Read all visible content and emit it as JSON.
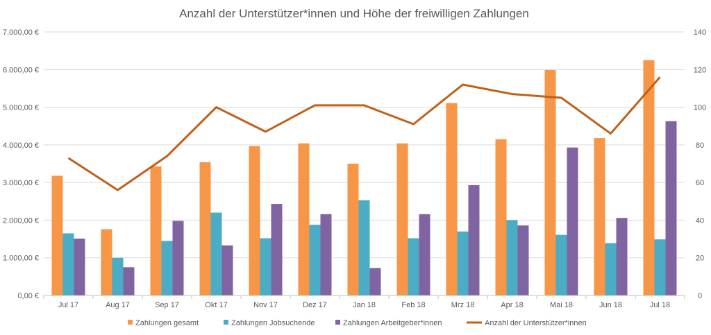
{
  "chart_data": {
    "type": "bar",
    "title": "Anzahl der Unterstützer*innen und Höhe der freiwilligen Zahlungen",
    "categories": [
      "Jul 17",
      "Aug 17",
      "Sep 17",
      "Okt 17",
      "Nov 17",
      "Dez 17",
      "Jan 18",
      "Feb 18",
      "Mrz 18",
      "Apr 18",
      "Mai 18",
      "Jun 18",
      "Jul 18"
    ],
    "y_left": {
      "min": 0,
      "max": 7000,
      "step": 1000,
      "tick_labels": [
        "0,00 €",
        "1.000,00 €",
        "2.000,00 €",
        "3.000,00 €",
        "4.000,00 €",
        "5.000,00 €",
        "6.000,00 €",
        "7.000,00 €"
      ]
    },
    "y_right": {
      "min": 0,
      "max": 140,
      "step": 20,
      "tick_labels": [
        "0",
        "20",
        "40",
        "60",
        "80",
        "100",
        "120",
        "140"
      ]
    },
    "series": [
      {
        "name": "Zahlungen gesamt",
        "kind": "bar",
        "axis": "left",
        "color": "#F79646",
        "values": [
          3180,
          1760,
          3430,
          3540,
          3970,
          4040,
          3500,
          4040,
          5110,
          4150,
          5990,
          4180,
          6250
        ]
      },
      {
        "name": "Zahlungen Jobsuchende",
        "kind": "bar",
        "axis": "left",
        "color": "#4BACC6",
        "values": [
          1650,
          1000,
          1450,
          2200,
          1520,
          1880,
          2530,
          1520,
          1700,
          2000,
          1610,
          1390,
          1490
        ]
      },
      {
        "name": "Zahlungen Arbeitgeber*innen",
        "kind": "bar",
        "axis": "left",
        "color": "#8064A2",
        "values": [
          1510,
          750,
          1980,
          1330,
          2430,
          2160,
          730,
          2160,
          2930,
          1860,
          3930,
          2060,
          4630
        ]
      },
      {
        "name": "Anzahl der Unterstützer*innen",
        "kind": "line",
        "axis": "right",
        "color": "#C0601A",
        "values": [
          73,
          56,
          74,
          100,
          87,
          101,
          101,
          91,
          112,
          107,
          105,
          86,
          116
        ]
      }
    ],
    "legend_position": "bottom",
    "grid": true
  }
}
